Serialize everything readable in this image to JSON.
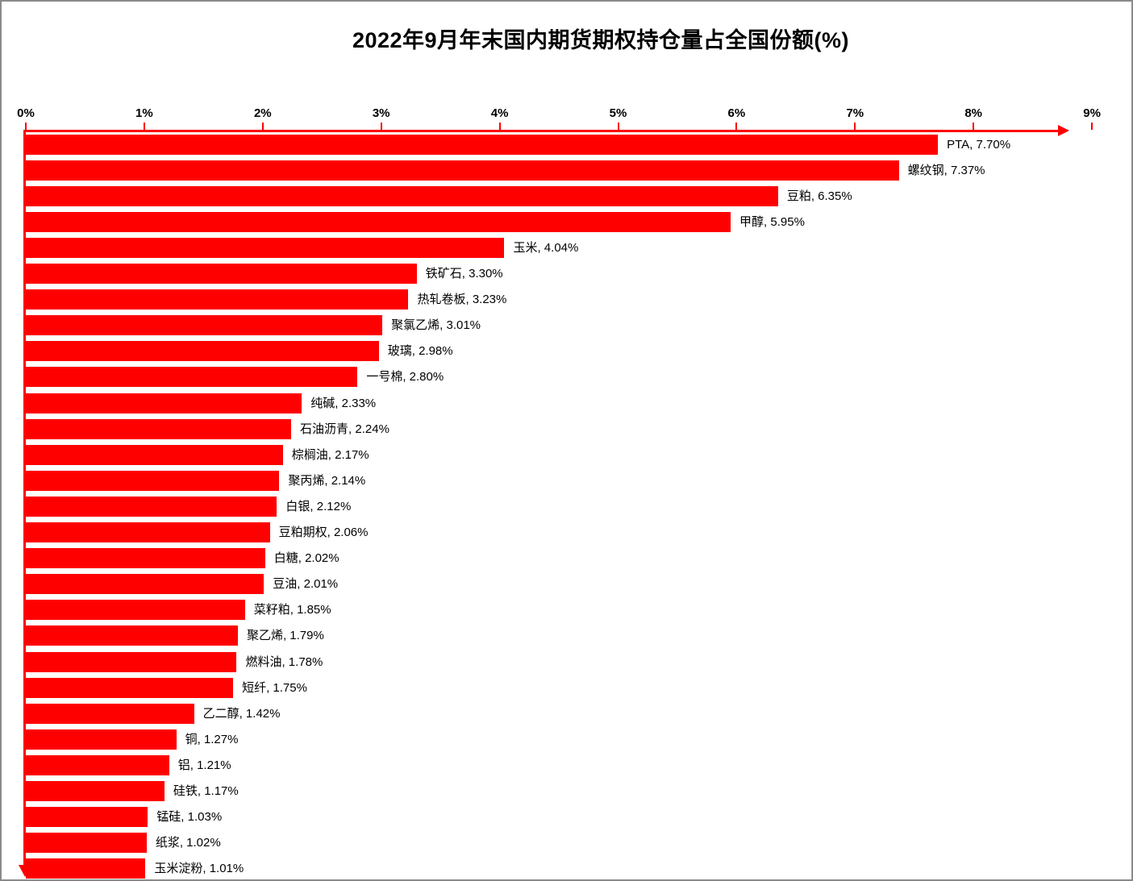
{
  "title": "2022年9月年末国内期货期权持仓量占全国份额(%)",
  "colors": {
    "bar": "#FF0000",
    "axis": "#FF0000",
    "text": "#000000",
    "frame_border": "#8A8A8A",
    "background": "#FFFFFF"
  },
  "chart_data": {
    "type": "bar",
    "orientation": "horizontal",
    "title": "2022年9月年末国内期货期权持仓量占全国份额(%)",
    "xlabel": "",
    "ylabel": "",
    "x_axis_ticks": [
      "0%",
      "1%",
      "2%",
      "3%",
      "4%",
      "5%",
      "6%",
      "7%",
      "8%",
      "9%"
    ],
    "x_range": [
      0,
      9
    ],
    "grid": false,
    "legend": false,
    "sort_order": "descending",
    "categories": [
      "PTA",
      "螺纹钢",
      "豆粕",
      "甲醇",
      "玉米",
      "铁矿石",
      "热轧卷板",
      "聚氯乙烯",
      "玻璃",
      "一号棉",
      "纯碱",
      "石油沥青",
      "棕榈油",
      "聚丙烯",
      "白银",
      "豆粕期权",
      "白糖",
      "豆油",
      "菜籽粕",
      "聚乙烯",
      "燃料油",
      "短纤",
      "乙二醇",
      "铜",
      "铝",
      "硅铁",
      "锰硅",
      "纸浆",
      "玉米淀粉"
    ],
    "values": [
      7.7,
      7.37,
      6.35,
      5.95,
      4.04,
      3.3,
      3.23,
      3.01,
      2.98,
      2.8,
      2.33,
      2.24,
      2.17,
      2.14,
      2.12,
      2.06,
      2.02,
      2.01,
      1.85,
      1.79,
      1.78,
      1.75,
      1.42,
      1.27,
      1.21,
      1.17,
      1.03,
      1.02,
      1.01
    ],
    "data_labels": [
      "PTA, 7.70%",
      "螺纹钢, 7.37%",
      "豆粕, 6.35%",
      "甲醇, 5.95%",
      "玉米, 4.04%",
      "铁矿石, 3.30%",
      "热轧卷板, 3.23%",
      "聚氯乙烯, 3.01%",
      "玻璃, 2.98%",
      "一号棉, 2.80%",
      "纯碱, 2.33%",
      "石油沥青, 2.24%",
      "棕榈油, 2.17%",
      "聚丙烯, 2.14%",
      "白银, 2.12%",
      "豆粕期权, 2.06%",
      "白糖, 2.02%",
      "豆油, 2.01%",
      "菜籽粕, 1.85%",
      "聚乙烯, 1.79%",
      "燃料油, 1.78%",
      "短纤, 1.75%",
      "乙二醇, 1.42%",
      "铜, 1.27%",
      "铝, 1.21%",
      "硅铁, 1.17%",
      "锰硅, 1.03%",
      "纸浆, 1.02%",
      "玉米淀粉, 1.01%"
    ]
  }
}
